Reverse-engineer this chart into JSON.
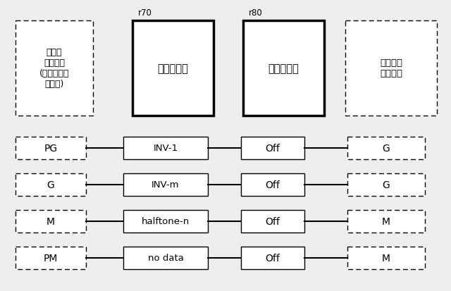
{
  "bg_color": "#f0f0f0",
  "rows": [
    {
      "col1": "PG",
      "col2": "INV-1",
      "col3": "Off",
      "col4": "G"
    },
    {
      "col1": "G",
      "col2": "INV-m",
      "col3": "Off",
      "col4": "G"
    },
    {
      "col1": "M",
      "col2": "halftone-n",
      "col3": "Off",
      "col4": "M"
    },
    {
      "col1": "PM",
      "col2": "no data",
      "col3": "Off",
      "col4": "M"
    }
  ],
  "header_left_text": "指定の\n表面効果\n(光沢制御版\nデータ)",
  "header_printer_text": "プリンタ機",
  "header_glosser_text": "グロッサー",
  "header_right_text": "得られる\n表面効果",
  "label_70": "r70",
  "label_80": "r80"
}
